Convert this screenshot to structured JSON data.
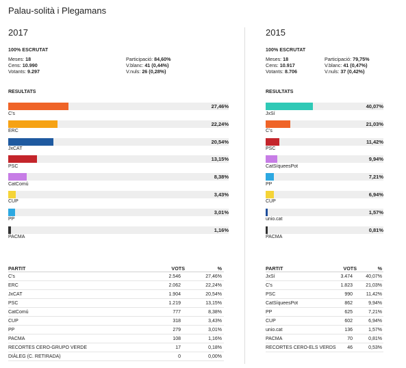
{
  "page": {
    "title": "Palau-solità i Plegamans"
  },
  "colors": {
    "Cs": "#ef6428",
    "ERC": "#f6a214",
    "JxCAT": "#1f5aa0",
    "PSC": "#c4252b",
    "CatComu": "#c77de6",
    "CUP": "#f5d437",
    "PP": "#2da8e1",
    "PACMA": "#333333",
    "JxSi": "#2fc9b6",
    "CatSiquesPot": "#c77de6",
    "uniocat": "#1f4f9c",
    "track": "#eeeeee"
  },
  "left": {
    "year": "2017",
    "scrutiny": "100% ESCRUTAT",
    "stats_a": [
      {
        "label": "Meses: ",
        "value": "18"
      },
      {
        "label": "Cens: ",
        "value": "10.990"
      },
      {
        "label": "Votants: ",
        "value": "9.297"
      }
    ],
    "stats_b": [
      {
        "label": "Participació: ",
        "value": "84,60%"
      },
      {
        "label": "V.blanc: ",
        "value": "41 (0,44%)"
      },
      {
        "label": "V.nuls: ",
        "value": "26 (0,28%)"
      }
    ],
    "results_heading": "RESULTATS",
    "results": [
      {
        "name": "C's",
        "pct_label": "27,46%",
        "pct": 27.46,
        "color": "#ef6428"
      },
      {
        "name": "ERC",
        "pct_label": "22,24%",
        "pct": 22.24,
        "color": "#f6a214"
      },
      {
        "name": "JxCAT",
        "pct_label": "20,54%",
        "pct": 20.54,
        "color": "#1f5aa0"
      },
      {
        "name": "PSC",
        "pct_label": "13,15%",
        "pct": 13.15,
        "color": "#c4252b"
      },
      {
        "name": "CatComú",
        "pct_label": "8,38%",
        "pct": 8.38,
        "color": "#c77de6"
      },
      {
        "name": "CUP",
        "pct_label": "3,43%",
        "pct": 3.43,
        "color": "#f5d437"
      },
      {
        "name": "PP",
        "pct_label": "3,01%",
        "pct": 3.01,
        "color": "#2da8e1"
      },
      {
        "name": "PACMA",
        "pct_label": "1,16%",
        "pct": 1.16,
        "color": "#333333"
      }
    ],
    "table_headers": {
      "party": "PARTIT",
      "votes": "VOTS",
      "pct": "%"
    },
    "table": [
      {
        "party": "C's",
        "votes": "2.546",
        "pct": "27,46%"
      },
      {
        "party": "ERC",
        "votes": "2.062",
        "pct": "22,24%"
      },
      {
        "party": "JxCAT",
        "votes": "1.904",
        "pct": "20,54%"
      },
      {
        "party": "PSC",
        "votes": "1.219",
        "pct": "13,15%"
      },
      {
        "party": "CatComú",
        "votes": "777",
        "pct": "8,38%"
      },
      {
        "party": "CUP",
        "votes": "318",
        "pct": "3,43%"
      },
      {
        "party": "PP",
        "votes": "279",
        "pct": "3,01%"
      },
      {
        "party": "PACMA",
        "votes": "108",
        "pct": "1,16%"
      },
      {
        "party": "RECORTES CERO-GRUPO VERDE",
        "votes": "17",
        "pct": "0,18%"
      },
      {
        "party": "DIÀLEG (C. RETIRADA)",
        "votes": "0",
        "pct": "0,00%"
      }
    ]
  },
  "right": {
    "year": "2015",
    "scrutiny": "100% ESCRUTAT",
    "stats_a": [
      {
        "label": "Meses: ",
        "value": "18"
      },
      {
        "label": "Cens: ",
        "value": "10.917"
      },
      {
        "label": "Votants: ",
        "value": "8.706"
      }
    ],
    "stats_b": [
      {
        "label": "Participació: ",
        "value": "79,75%"
      },
      {
        "label": "V.blanc: ",
        "value": "41 (0,47%)"
      },
      {
        "label": "V.nuls: ",
        "value": "37 (0,42%)"
      }
    ],
    "results_heading": "RESULTATS",
    "results": [
      {
        "name": "JxSí",
        "pct_label": "40,07%",
        "pct": 40.07,
        "color": "#2fc9b6"
      },
      {
        "name": "C's",
        "pct_label": "21,03%",
        "pct": 21.03,
        "color": "#ef6428"
      },
      {
        "name": "PSC",
        "pct_label": "11,42%",
        "pct": 11.42,
        "color": "#c4252b"
      },
      {
        "name": "CatSíqueesPot",
        "pct_label": "9,94%",
        "pct": 9.94,
        "color": "#c77de6"
      },
      {
        "name": "PP",
        "pct_label": "7,21%",
        "pct": 7.21,
        "color": "#2da8e1"
      },
      {
        "name": "CUP",
        "pct_label": "6,94%",
        "pct": 6.94,
        "color": "#f5d437"
      },
      {
        "name": "unio.cat",
        "pct_label": "1,57%",
        "pct": 1.57,
        "color": "#1f4f9c"
      },
      {
        "name": "PACMA",
        "pct_label": "0,81%",
        "pct": 0.81,
        "color": "#333333"
      }
    ],
    "table_headers": {
      "party": "PARTIT",
      "votes": "VOTS",
      "pct": "%"
    },
    "table": [
      {
        "party": "JxSí",
        "votes": "3.474",
        "pct": "40,07%"
      },
      {
        "party": "C's",
        "votes": "1.823",
        "pct": "21,03%"
      },
      {
        "party": "PSC",
        "votes": "990",
        "pct": "11,42%"
      },
      {
        "party": "CatSíqueesPot",
        "votes": "862",
        "pct": "9,94%"
      },
      {
        "party": "PP",
        "votes": "625",
        "pct": "7,21%"
      },
      {
        "party": "CUP",
        "votes": "602",
        "pct": "6,94%"
      },
      {
        "party": "unio.cat",
        "votes": "136",
        "pct": "1,57%"
      },
      {
        "party": "PACMA",
        "votes": "70",
        "pct": "0,81%"
      },
      {
        "party": "RECORTES CERO-ELS VERDS",
        "votes": "46",
        "pct": "0,53%"
      }
    ]
  }
}
